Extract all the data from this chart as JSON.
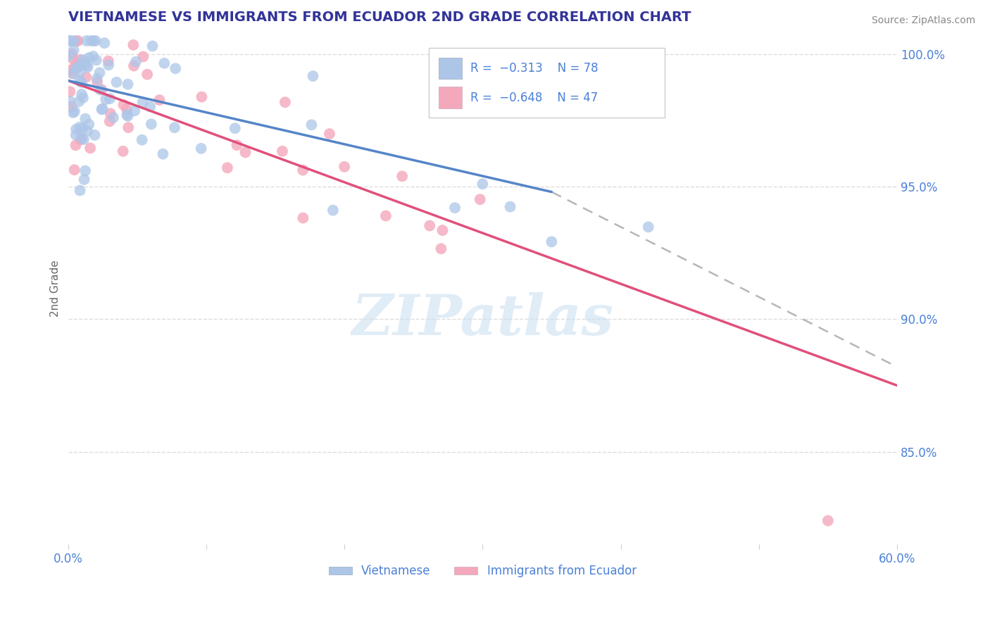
{
  "title": "VIETNAMESE VS IMMIGRANTS FROM ECUADOR 2ND GRADE CORRELATION CHART",
  "source": "Source: ZipAtlas.com",
  "ylabel": "2nd Grade",
  "xlim": [
    0.0,
    0.6
  ],
  "ylim": [
    0.815,
    1.008
  ],
  "xtick_pos": [
    0.0,
    0.1,
    0.2,
    0.3,
    0.4,
    0.5,
    0.6
  ],
  "xtick_labels": [
    "0.0%",
    "",
    "",
    "",
    "",
    "",
    "60.0%"
  ],
  "ytick_positions": [
    0.85,
    0.9,
    0.95,
    1.0
  ],
  "ytick_labels": [
    "85.0%",
    "90.0%",
    "95.0%",
    "100.0%"
  ],
  "legend_labels": [
    "Vietnamese",
    "Immigrants from Ecuador"
  ],
  "r_viet": -0.313,
  "n_viet": 78,
  "r_ecua": -0.648,
  "n_ecua": 47,
  "color_viet": "#adc6e8",
  "color_ecua": "#f4a8bc",
  "line_color_viet": "#5585c8",
  "line_color_ecua": "#e0507a",
  "dash_color": "#aaaaaa",
  "watermark": "ZIPatlas",
  "watermark_color": "#c8ddf0",
  "title_color": "#333399",
  "tick_color": "#4a80d9",
  "grid_color": "#dddddd",
  "background_color": "#ffffff",
  "blue_line_x0": 0.0,
  "blue_line_y0": 0.99,
  "blue_line_x1": 0.35,
  "blue_line_y1": 0.948,
  "pink_line_x0": 0.0,
  "pink_line_y0": 0.99,
  "pink_line_x1": 0.6,
  "pink_line_y1": 0.875,
  "dash_line_x0": 0.35,
  "dash_line_y0": 0.948,
  "dash_line_x1": 0.6,
  "dash_line_y1": 0.882
}
